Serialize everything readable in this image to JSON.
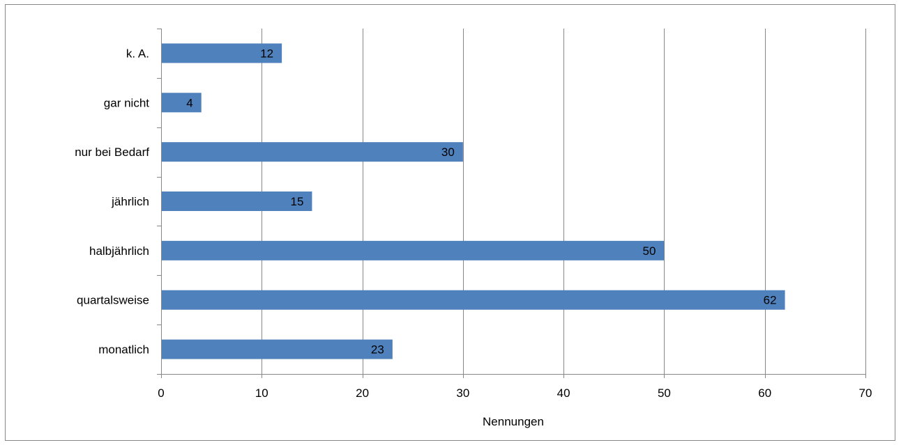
{
  "chart_data": {
    "type": "bar",
    "orientation": "horizontal",
    "categories": [
      "k. A.",
      "gar nicht",
      "nur bei Bedarf",
      "jährlich",
      "halbjährlich",
      "quartalsweise",
      "monatlich"
    ],
    "values": [
      12,
      4,
      30,
      15,
      50,
      62,
      23
    ],
    "data_labels": [
      "12",
      "4",
      "30",
      "15",
      "50",
      "62",
      "23"
    ],
    "title": "",
    "xlabel": "Nennungen",
    "ylabel": "",
    "xlim": [
      0,
      70
    ],
    "x_ticks": [
      0,
      10,
      20,
      30,
      40,
      50,
      60,
      70
    ],
    "x_tick_labels": [
      "0",
      "10",
      "20",
      "30",
      "40",
      "50",
      "60",
      "70"
    ],
    "grid": "vertical",
    "legend": "none",
    "colors": {
      "bar": "#4f81bd",
      "grid": "#868686",
      "frame": "#868686",
      "text": "#000000"
    }
  }
}
